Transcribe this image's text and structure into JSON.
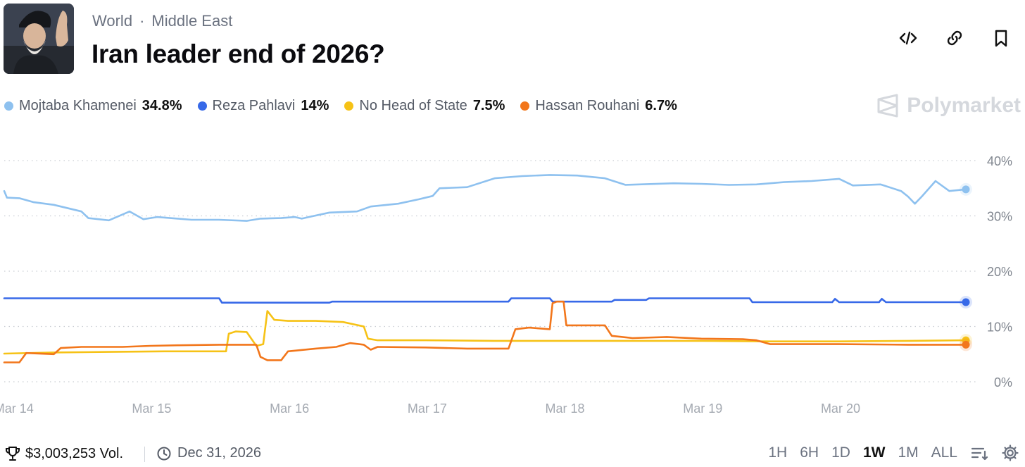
{
  "header": {
    "breadcrumb": [
      "World",
      "Middle East"
    ],
    "breadcrumb_separator": "·",
    "title": "Iran leader end of 2026?"
  },
  "actions": [
    {
      "name": "embed-icon"
    },
    {
      "name": "link-icon"
    },
    {
      "name": "bookmark-icon"
    }
  ],
  "legend": [
    {
      "name": "Mojtaba Khamenei",
      "value": "34.8%",
      "color": "#8ec1ef"
    },
    {
      "name": "Reza Pahlavi",
      "value": "14%",
      "color": "#3769e8"
    },
    {
      "name": "No Head of State",
      "value": "7.5%",
      "color": "#f6c216"
    },
    {
      "name": "Hassan Rouhani",
      "value": "6.7%",
      "color": "#f2761b"
    }
  ],
  "brand": {
    "label": "Polymarket"
  },
  "footer": {
    "volume": "$3,003,253 Vol.",
    "end_date": "Dec 31, 2026",
    "ranges": [
      "1H",
      "6H",
      "1D",
      "1W",
      "1M",
      "ALL"
    ],
    "active_range": "1W"
  },
  "chart_data": {
    "type": "line",
    "x_unit": "days",
    "x_ticks": [
      "Mar 14",
      "Mar 15",
      "Mar 16",
      "Mar 17",
      "Mar 18",
      "Mar 19",
      "Mar 20"
    ],
    "x_tick_values": [
      0,
      1,
      2,
      3,
      4,
      5,
      6
    ],
    "xlim": [
      -0.06,
      6.92
    ],
    "y_ticks": [
      "0%",
      "10%",
      "20%",
      "30%",
      "40%"
    ],
    "y_tick_values": [
      0,
      10,
      20,
      30,
      40
    ],
    "ylim": [
      0,
      40
    ],
    "grid": true,
    "series": [
      {
        "name": "Mojtaba Khamenei",
        "color": "#8ec1ef",
        "x": [
          -0.06,
          -0.04,
          0.05,
          0.15,
          0.3,
          0.5,
          0.55,
          0.7,
          0.85,
          0.95,
          1.05,
          1.2,
          1.3,
          1.5,
          1.7,
          1.8,
          1.95,
          2.05,
          2.1,
          2.15,
          2.3,
          2.5,
          2.6,
          2.8,
          2.95,
          3.05,
          3.1,
          3.3,
          3.5,
          3.7,
          3.9,
          4.1,
          4.3,
          4.45,
          4.55,
          4.8,
          5.0,
          5.2,
          5.4,
          5.6,
          5.8,
          6.0,
          6.1,
          6.3,
          6.45,
          6.5,
          6.55,
          6.6,
          6.7,
          6.8,
          6.92
        ],
        "y": [
          34.5,
          33.3,
          33.2,
          32.5,
          32.0,
          30.8,
          29.6,
          29.2,
          30.8,
          29.4,
          29.8,
          29.5,
          29.3,
          29.3,
          29.1,
          29.5,
          29.6,
          29.8,
          29.5,
          29.8,
          30.6,
          30.8,
          31.7,
          32.2,
          33.0,
          33.6,
          35.0,
          35.2,
          36.8,
          37.2,
          37.4,
          37.3,
          36.8,
          35.6,
          35.7,
          35.9,
          35.8,
          35.6,
          35.7,
          36.1,
          36.3,
          36.7,
          35.5,
          35.7,
          34.5,
          33.5,
          32.2,
          33.5,
          36.3,
          34.5,
          34.8
        ]
      },
      {
        "name": "Reza Pahlavi",
        "color": "#3769e8",
        "x": [
          -0.06,
          1.5,
          1.52,
          2.3,
          2.32,
          3.6,
          3.62,
          3.9,
          3.92,
          4.35,
          4.37,
          4.6,
          4.62,
          5.35,
          5.37,
          5.95,
          5.97,
          6.0,
          6.29,
          6.31,
          6.34,
          6.92
        ],
        "y": [
          15.1,
          15.1,
          14.3,
          14.3,
          14.5,
          14.5,
          15.1,
          15.1,
          14.5,
          14.5,
          14.8,
          14.8,
          15.1,
          15.1,
          14.4,
          14.4,
          15.0,
          14.4,
          14.4,
          15.0,
          14.4,
          14.4
        ]
      },
      {
        "name": "No Head of State",
        "color": "#f6c216",
        "x": [
          -0.06,
          0.3,
          0.7,
          1.1,
          1.4,
          1.55,
          1.57,
          1.62,
          1.7,
          1.77,
          1.82,
          1.85,
          1.9,
          2.0,
          2.2,
          2.4,
          2.55,
          2.58,
          2.65,
          3.0,
          3.5,
          4.0,
          4.5,
          5.0,
          5.5,
          6.0,
          6.5,
          6.92
        ],
        "y": [
          5.1,
          5.3,
          5.4,
          5.5,
          5.5,
          5.5,
          8.7,
          9.1,
          9.0,
          6.5,
          6.8,
          12.8,
          11.2,
          11.0,
          11.0,
          10.8,
          10.0,
          7.8,
          7.5,
          7.5,
          7.4,
          7.4,
          7.4,
          7.4,
          7.3,
          7.3,
          7.4,
          7.5
        ]
      },
      {
        "name": "Hassan Rouhani",
        "color": "#f2761b",
        "x": [
          -0.06,
          0.05,
          0.1,
          0.3,
          0.35,
          0.5,
          0.8,
          1.0,
          1.2,
          1.5,
          1.77,
          1.8,
          1.85,
          1.95,
          2.0,
          2.2,
          2.35,
          2.45,
          2.55,
          2.6,
          2.65,
          3.0,
          3.3,
          3.5,
          3.6,
          3.65,
          3.75,
          3.9,
          3.92,
          3.95,
          4.0,
          4.02,
          4.1,
          4.3,
          4.35,
          4.5,
          4.75,
          5.0,
          5.3,
          5.4,
          5.5,
          6.0,
          6.5,
          6.92
        ],
        "y": [
          3.5,
          3.5,
          5.2,
          5.0,
          6.1,
          6.3,
          6.3,
          6.5,
          6.6,
          6.7,
          6.7,
          4.5,
          3.9,
          3.9,
          5.5,
          6.0,
          6.3,
          7.0,
          6.7,
          5.8,
          6.3,
          6.2,
          6.0,
          6.0,
          6.0,
          9.5,
          9.8,
          9.5,
          14.2,
          14.5,
          14.5,
          10.2,
          10.2,
          10.2,
          8.3,
          7.9,
          8.1,
          7.8,
          7.7,
          7.5,
          6.8,
          6.8,
          6.7,
          6.7
        ]
      }
    ]
  }
}
